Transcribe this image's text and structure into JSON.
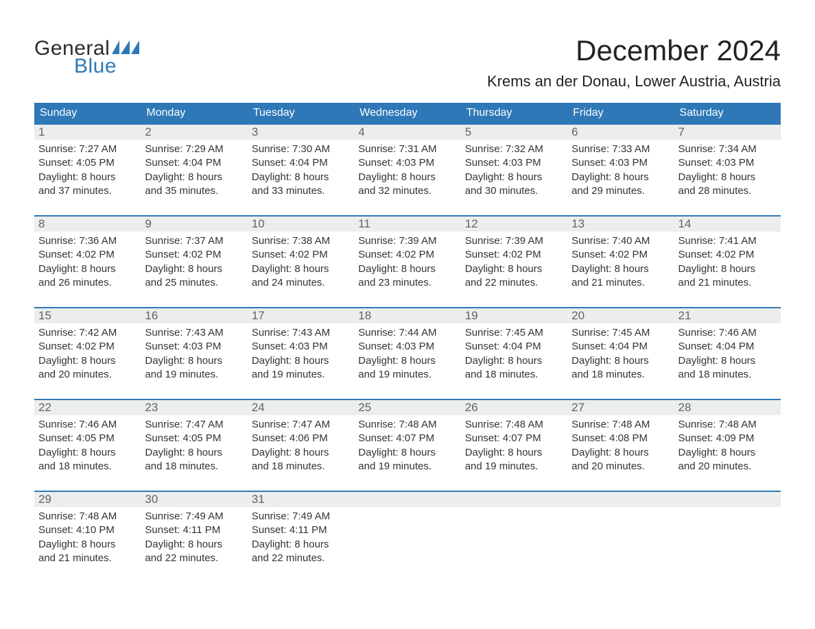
{
  "brand": {
    "word1": "General",
    "word2": "Blue",
    "accent_color": "#2e78b7"
  },
  "title": "December 2024",
  "location": "Krems an der Donau, Lower Austria, Austria",
  "colors": {
    "header_bg": "#2e78b7",
    "header_text": "#ffffff",
    "daynum_bg": "#eceded",
    "daynum_text": "#636363",
    "border": "#2e78b7",
    "body_text": "#333333",
    "page_bg": "#ffffff"
  },
  "typography": {
    "title_fontsize": 42,
    "location_fontsize": 22,
    "weekday_fontsize": 16,
    "daynum_fontsize": 17,
    "body_fontsize": 15
  },
  "weekdays": [
    "Sunday",
    "Monday",
    "Tuesday",
    "Wednesday",
    "Thursday",
    "Friday",
    "Saturday"
  ],
  "weeks": [
    [
      {
        "n": "1",
        "sunrise": "Sunrise: 7:27 AM",
        "sunset": "Sunset: 4:05 PM",
        "d1": "Daylight: 8 hours",
        "d2": "and 37 minutes."
      },
      {
        "n": "2",
        "sunrise": "Sunrise: 7:29 AM",
        "sunset": "Sunset: 4:04 PM",
        "d1": "Daylight: 8 hours",
        "d2": "and 35 minutes."
      },
      {
        "n": "3",
        "sunrise": "Sunrise: 7:30 AM",
        "sunset": "Sunset: 4:04 PM",
        "d1": "Daylight: 8 hours",
        "d2": "and 33 minutes."
      },
      {
        "n": "4",
        "sunrise": "Sunrise: 7:31 AM",
        "sunset": "Sunset: 4:03 PM",
        "d1": "Daylight: 8 hours",
        "d2": "and 32 minutes."
      },
      {
        "n": "5",
        "sunrise": "Sunrise: 7:32 AM",
        "sunset": "Sunset: 4:03 PM",
        "d1": "Daylight: 8 hours",
        "d2": "and 30 minutes."
      },
      {
        "n": "6",
        "sunrise": "Sunrise: 7:33 AM",
        "sunset": "Sunset: 4:03 PM",
        "d1": "Daylight: 8 hours",
        "d2": "and 29 minutes."
      },
      {
        "n": "7",
        "sunrise": "Sunrise: 7:34 AM",
        "sunset": "Sunset: 4:03 PM",
        "d1": "Daylight: 8 hours",
        "d2": "and 28 minutes."
      }
    ],
    [
      {
        "n": "8",
        "sunrise": "Sunrise: 7:36 AM",
        "sunset": "Sunset: 4:02 PM",
        "d1": "Daylight: 8 hours",
        "d2": "and 26 minutes."
      },
      {
        "n": "9",
        "sunrise": "Sunrise: 7:37 AM",
        "sunset": "Sunset: 4:02 PM",
        "d1": "Daylight: 8 hours",
        "d2": "and 25 minutes."
      },
      {
        "n": "10",
        "sunrise": "Sunrise: 7:38 AM",
        "sunset": "Sunset: 4:02 PM",
        "d1": "Daylight: 8 hours",
        "d2": "and 24 minutes."
      },
      {
        "n": "11",
        "sunrise": "Sunrise: 7:39 AM",
        "sunset": "Sunset: 4:02 PM",
        "d1": "Daylight: 8 hours",
        "d2": "and 23 minutes."
      },
      {
        "n": "12",
        "sunrise": "Sunrise: 7:39 AM",
        "sunset": "Sunset: 4:02 PM",
        "d1": "Daylight: 8 hours",
        "d2": "and 22 minutes."
      },
      {
        "n": "13",
        "sunrise": "Sunrise: 7:40 AM",
        "sunset": "Sunset: 4:02 PM",
        "d1": "Daylight: 8 hours",
        "d2": "and 21 minutes."
      },
      {
        "n": "14",
        "sunrise": "Sunrise: 7:41 AM",
        "sunset": "Sunset: 4:02 PM",
        "d1": "Daylight: 8 hours",
        "d2": "and 21 minutes."
      }
    ],
    [
      {
        "n": "15",
        "sunrise": "Sunrise: 7:42 AM",
        "sunset": "Sunset: 4:02 PM",
        "d1": "Daylight: 8 hours",
        "d2": "and 20 minutes."
      },
      {
        "n": "16",
        "sunrise": "Sunrise: 7:43 AM",
        "sunset": "Sunset: 4:03 PM",
        "d1": "Daylight: 8 hours",
        "d2": "and 19 minutes."
      },
      {
        "n": "17",
        "sunrise": "Sunrise: 7:43 AM",
        "sunset": "Sunset: 4:03 PM",
        "d1": "Daylight: 8 hours",
        "d2": "and 19 minutes."
      },
      {
        "n": "18",
        "sunrise": "Sunrise: 7:44 AM",
        "sunset": "Sunset: 4:03 PM",
        "d1": "Daylight: 8 hours",
        "d2": "and 19 minutes."
      },
      {
        "n": "19",
        "sunrise": "Sunrise: 7:45 AM",
        "sunset": "Sunset: 4:04 PM",
        "d1": "Daylight: 8 hours",
        "d2": "and 18 minutes."
      },
      {
        "n": "20",
        "sunrise": "Sunrise: 7:45 AM",
        "sunset": "Sunset: 4:04 PM",
        "d1": "Daylight: 8 hours",
        "d2": "and 18 minutes."
      },
      {
        "n": "21",
        "sunrise": "Sunrise: 7:46 AM",
        "sunset": "Sunset: 4:04 PM",
        "d1": "Daylight: 8 hours",
        "d2": "and 18 minutes."
      }
    ],
    [
      {
        "n": "22",
        "sunrise": "Sunrise: 7:46 AM",
        "sunset": "Sunset: 4:05 PM",
        "d1": "Daylight: 8 hours",
        "d2": "and 18 minutes."
      },
      {
        "n": "23",
        "sunrise": "Sunrise: 7:47 AM",
        "sunset": "Sunset: 4:05 PM",
        "d1": "Daylight: 8 hours",
        "d2": "and 18 minutes."
      },
      {
        "n": "24",
        "sunrise": "Sunrise: 7:47 AM",
        "sunset": "Sunset: 4:06 PM",
        "d1": "Daylight: 8 hours",
        "d2": "and 18 minutes."
      },
      {
        "n": "25",
        "sunrise": "Sunrise: 7:48 AM",
        "sunset": "Sunset: 4:07 PM",
        "d1": "Daylight: 8 hours",
        "d2": "and 19 minutes."
      },
      {
        "n": "26",
        "sunrise": "Sunrise: 7:48 AM",
        "sunset": "Sunset: 4:07 PM",
        "d1": "Daylight: 8 hours",
        "d2": "and 19 minutes."
      },
      {
        "n": "27",
        "sunrise": "Sunrise: 7:48 AM",
        "sunset": "Sunset: 4:08 PM",
        "d1": "Daylight: 8 hours",
        "d2": "and 20 minutes."
      },
      {
        "n": "28",
        "sunrise": "Sunrise: 7:48 AM",
        "sunset": "Sunset: 4:09 PM",
        "d1": "Daylight: 8 hours",
        "d2": "and 20 minutes."
      }
    ],
    [
      {
        "n": "29",
        "sunrise": "Sunrise: 7:48 AM",
        "sunset": "Sunset: 4:10 PM",
        "d1": "Daylight: 8 hours",
        "d2": "and 21 minutes."
      },
      {
        "n": "30",
        "sunrise": "Sunrise: 7:49 AM",
        "sunset": "Sunset: 4:11 PM",
        "d1": "Daylight: 8 hours",
        "d2": "and 22 minutes."
      },
      {
        "n": "31",
        "sunrise": "Sunrise: 7:49 AM",
        "sunset": "Sunset: 4:11 PM",
        "d1": "Daylight: 8 hours",
        "d2": "and 22 minutes."
      },
      {
        "n": "",
        "sunrise": "",
        "sunset": "",
        "d1": "",
        "d2": ""
      },
      {
        "n": "",
        "sunrise": "",
        "sunset": "",
        "d1": "",
        "d2": ""
      },
      {
        "n": "",
        "sunrise": "",
        "sunset": "",
        "d1": "",
        "d2": ""
      },
      {
        "n": "",
        "sunrise": "",
        "sunset": "",
        "d1": "",
        "d2": ""
      }
    ]
  ]
}
